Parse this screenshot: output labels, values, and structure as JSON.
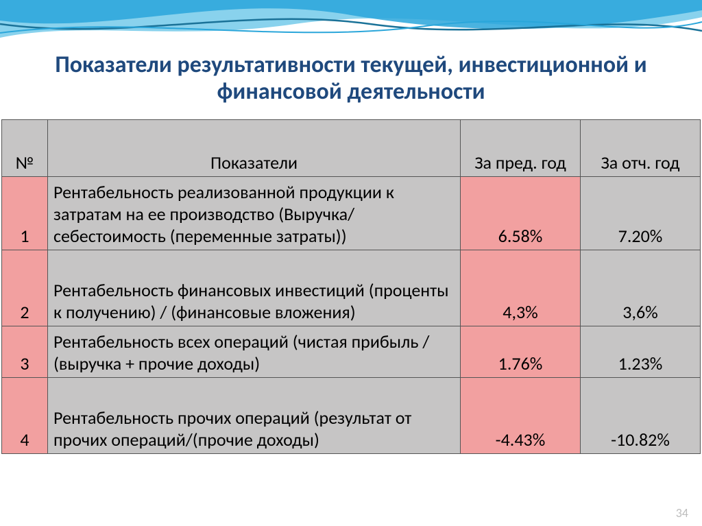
{
  "title": "Показатели результативности текущей, инвестиционной и финансовой деятельности",
  "title_color": "#1f497d",
  "title_fontsize": 34,
  "background_color": "#ffffff",
  "table": {
    "header_bg": "#c6c5c5",
    "row_pink_bg": "#f2a0a0",
    "row_gray_bg": "#c6c5c5",
    "border_color": "#555555",
    "fontsize": 26,
    "text_color": "#000000",
    "columns": {
      "num": "№",
      "indicator": "Показатели",
      "prev": "За пред. год",
      "curr": "За отч. год"
    },
    "rows": [
      {
        "n": "1",
        "indicator": "Рентабельность реализованной продукции к затратам на ее производство (Выручка/себестоимость (переменные затраты))",
        "prev": "6.58%",
        "curr": "7.20%",
        "lines": 4
      },
      {
        "n": "2",
        "indicator": "Рентабельность финансовых инвестиций (проценты к получению) / (финансовые вложения)",
        "prev": "4,3%",
        "curr": "3,6%",
        "lines": 3
      },
      {
        "n": "3",
        "indicator": "Рентабельность всех операций (чистая прибыль / (выручка + прочие доходы)",
        "prev": "1.76%",
        "curr": "1.23%",
        "lines": 2
      },
      {
        "n": "4",
        "indicator": "Рентабельность прочих операций (результат от прочих операций/(прочие доходы)",
        "prev": "-4.43%",
        "curr": "-10.82%",
        "lines": 3
      }
    ]
  },
  "wave_colors": {
    "dark": "#1a7298",
    "mid": "#2aa6da",
    "light": "#6cc7e8"
  },
  "slide_number": "34"
}
